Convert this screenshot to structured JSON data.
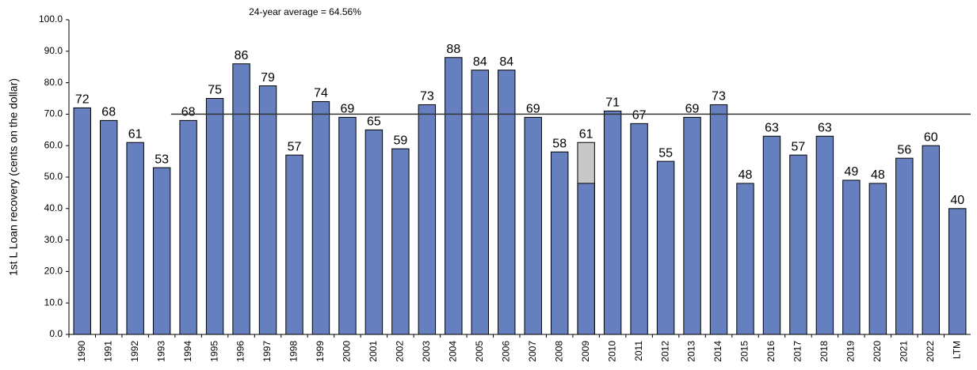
{
  "chart_data": {
    "type": "bar",
    "annotation": "24-year average = 64.56%",
    "y_label": "1st L Loan recovery (cents on the dollar)",
    "categories": [
      "1990",
      "1991",
      "1992",
      "1993",
      "1994",
      "1995",
      "1996",
      "1997",
      "1998",
      "1999",
      "2000",
      "2001",
      "2002",
      "2003",
      "2004",
      "2005",
      "2006",
      "2007",
      "2008",
      "2009",
      "2010",
      "2011",
      "2012",
      "2013",
      "2014",
      "2015",
      "2016",
      "2017",
      "2018",
      "2019",
      "2020",
      "2021",
      "2022",
      "LTM"
    ],
    "series": [
      {
        "color": "#c8c8c8",
        "values": [
          null,
          null,
          null,
          null,
          null,
          null,
          null,
          null,
          null,
          null,
          null,
          null,
          null,
          null,
          null,
          null,
          null,
          null,
          null,
          61,
          null,
          null,
          null,
          null,
          null,
          null,
          null,
          null,
          null,
          null,
          null,
          null,
          null,
          null
        ]
      },
      {
        "color": "#6680bf",
        "values": [
          72,
          68,
          61,
          53,
          68,
          75,
          86,
          79,
          57,
          74,
          69,
          65,
          59,
          73,
          88,
          84,
          84,
          69,
          58,
          48,
          71,
          67,
          55,
          69,
          73,
          48,
          63,
          57,
          63,
          49,
          48,
          56,
          60,
          40
        ]
      }
    ],
    "reference_line": {
      "value": 70,
      "start": "1994"
    },
    "ylim": [
      0,
      100
    ],
    "yticks": [
      {
        "value": 0,
        "label": "0.0"
      },
      {
        "value": 10,
        "label": "10.0"
      },
      {
        "value": 20,
        "label": "20.0"
      },
      {
        "value": 30,
        "label": "30.0"
      },
      {
        "value": 40,
        "label": "40.0"
      },
      {
        "value": 50,
        "label": "50.0"
      },
      {
        "value": 60,
        "label": "60.0"
      },
      {
        "value": 70,
        "label": "70.0"
      },
      {
        "value": 80,
        "label": "80.0"
      },
      {
        "value": 90,
        "label": "90.0"
      },
      {
        "value": 100,
        "label": "100.0"
      }
    ]
  }
}
